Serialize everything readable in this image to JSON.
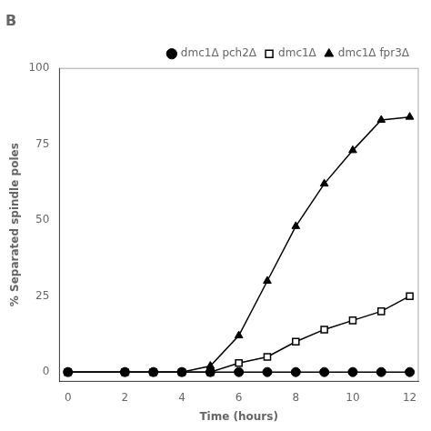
{
  "chart_data": {
    "type": "line",
    "title": "B",
    "xlabel": "Time (hours)",
    "ylabel": "% Separated spindle poles",
    "x": [
      0,
      2,
      3,
      4,
      5,
      6,
      7,
      8,
      9,
      10,
      11,
      12
    ],
    "series": [
      {
        "name": "dmc1Δ",
        "color": "#000000",
        "marker": "open_square",
        "values": [
          0,
          0,
          0,
          0,
          0,
          3,
          5,
          10,
          14,
          17,
          20,
          25
        ]
      },
      {
        "name": "dmc1Δ pch2Δ",
        "color": "#000000",
        "marker": "circle",
        "values": [
          0,
          0,
          0,
          0,
          0,
          0,
          0,
          0,
          0,
          0,
          0,
          0
        ]
      },
      {
        "name": "dmc1Δ fpr3Δ",
        "color": "#000000",
        "marker": "triangle",
        "values": [
          0,
          0,
          0,
          0,
          2,
          12,
          30,
          48,
          62,
          73,
          83,
          84
        ]
      }
    ],
    "xlim": [
      -0.3,
      12.3
    ],
    "ylim": [
      -3,
      100
    ],
    "xticks": [
      0,
      2,
      4,
      6,
      8,
      10,
      12
    ],
    "yticks": [
      0,
      25,
      50,
      75,
      100
    ],
    "grid": false,
    "legend": "top"
  }
}
